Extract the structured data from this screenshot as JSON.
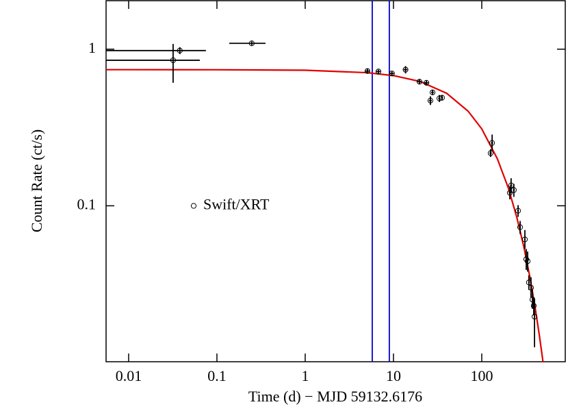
{
  "chart_data": {
    "type": "scatter",
    "xlabel": "Time (d) − MJD 59132.6176",
    "ylabel": "Count Rate (ct/s)",
    "xscale": "log",
    "yscale": "log",
    "xlim": [
      0.00555,
      883
    ],
    "ylim": [
      0.0101,
      2.04
    ],
    "xticks": [
      0.01,
      0.1,
      1,
      10,
      100
    ],
    "yticks": [
      0.1,
      1
    ],
    "legend": "middle-left",
    "series": [
      {
        "name": "Swift/XRT",
        "color": "#000000",
        "x": [
          0.0319,
          0.038,
          0.248,
          5.07,
          6.75,
          9.6,
          13.7,
          19.7,
          23.6,
          26.2,
          27.7,
          33.1,
          35.5,
          126,
          131,
          208,
          215,
          231,
          258,
          272,
          308,
          319,
          331,
          342,
          361,
          375,
          388,
          396
        ],
        "values": [
          0.85,
          0.98,
          1.09,
          0.725,
          0.72,
          0.7,
          0.74,
          0.62,
          0.61,
          0.47,
          0.53,
          0.485,
          0.49,
          0.217,
          0.252,
          0.121,
          0.135,
          0.126,
          0.093,
          0.073,
          0.061,
          0.0456,
          0.0443,
          0.0324,
          0.03,
          0.0252,
          0.023,
          0.0196
        ],
        "x_lo": [
          0.0055,
          0.0055,
          0.138,
          4.8,
          6.4,
          9.1,
          13,
          18.7,
          22.4,
          25.2,
          26.7,
          32.1,
          34.5,
          122,
          127,
          202,
          209,
          225,
          252,
          266,
          302,
          313,
          325,
          336,
          355,
          369,
          382,
          390
        ],
        "x_hi": [
          0.064,
          0.075,
          0.355,
          5.35,
          7.1,
          10.1,
          14.4,
          20.7,
          24.8,
          27.2,
          28.7,
          34.1,
          36.5,
          130,
          135,
          214,
          221,
          237,
          264,
          278,
          314,
          325,
          337,
          348,
          367,
          381,
          394,
          402
        ],
        "y_lo": [
          0.61,
          0.93,
          1.06,
          0.7,
          0.7,
          0.68,
          0.7,
          0.6,
          0.59,
          0.44,
          0.51,
          0.46,
          0.47,
          0.205,
          0.225,
          0.11,
          0.12,
          0.114,
          0.085,
          0.066,
          0.053,
          0.039,
          0.038,
          0.029,
          0.026,
          0.022,
          0.02,
          0.0125
        ],
        "y_hi": [
          1.08,
          1.03,
          1.12,
          0.75,
          0.74,
          0.72,
          0.78,
          0.64,
          0.63,
          0.5,
          0.55,
          0.51,
          0.51,
          0.23,
          0.285,
          0.133,
          0.15,
          0.138,
          0.101,
          0.08,
          0.07,
          0.053,
          0.051,
          0.036,
          0.035,
          0.029,
          0.026,
          0.025
        ]
      }
    ],
    "model": {
      "color": "#e00000",
      "x": [
        0.00555,
        0.01,
        0.1,
        1,
        5,
        10,
        20,
        40,
        70,
        100,
        150,
        200,
        250,
        300,
        350,
        400,
        450,
        500
      ],
      "values": [
        0.74,
        0.74,
        0.739,
        0.734,
        0.708,
        0.678,
        0.622,
        0.523,
        0.402,
        0.31,
        0.2,
        0.13,
        0.084,
        0.0545,
        0.0353,
        0.0229,
        0.0148,
        0.0096
      ]
    },
    "vlines": {
      "color": "#0000cc",
      "x": [
        5.75,
        8.97
      ]
    }
  }
}
